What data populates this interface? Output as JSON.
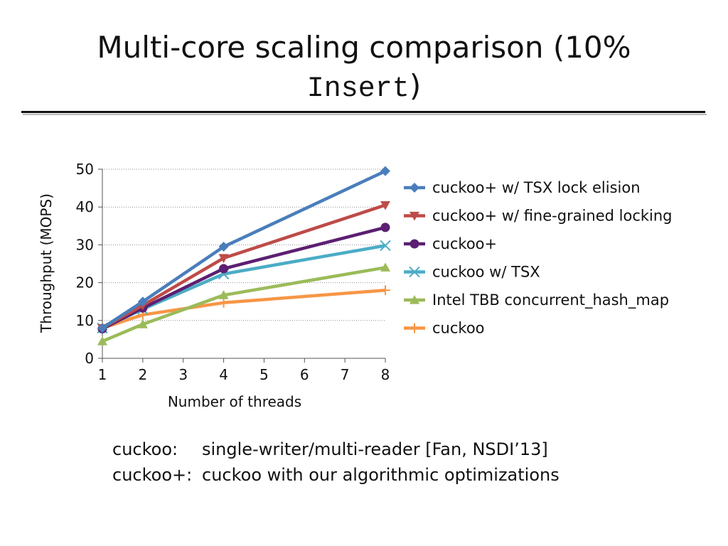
{
  "slide": {
    "title_text": "Multi-core scaling comparison (10%",
    "title_code": "Insert",
    "title_close": ")",
    "notes": [
      {
        "key": "cuckoo:",
        "text": "single-writer/multi-reader [Fan, NSDI’13]"
      },
      {
        "key": "cuckoo+:",
        "text": "cuckoo with our algorithmic optimizations"
      }
    ]
  },
  "chart_data": {
    "type": "line",
    "xlabel": "Number of threads",
    "ylabel": "Throughput (MOPS)",
    "x_ticks": [
      1,
      2,
      3,
      4,
      5,
      6,
      7,
      8
    ],
    "y_ticks": [
      0,
      10,
      20,
      30,
      40,
      50
    ],
    "xlim": [
      1,
      8
    ],
    "ylim": [
      0,
      50
    ],
    "grid": "horizontal",
    "legend_position": "right",
    "x": [
      1,
      2,
      4,
      8
    ],
    "series": [
      {
        "name": "cuckoo+ w/ TSX lock elision",
        "color": "#4a7ebb",
        "marker": "diamond",
        "values": [
          8,
          15,
          29.5,
          49.5
        ]
      },
      {
        "name": "cuckoo+ w/ fine-grained locking",
        "color": "#be4b48",
        "marker": "triangle-down",
        "values": [
          8,
          14,
          26.5,
          40.5
        ]
      },
      {
        "name": "cuckoo+",
        "color": "#5c1f72",
        "marker": "circle",
        "values": [
          7.8,
          13.3,
          23.7,
          34.6
        ]
      },
      {
        "name": "cuckoo w/ TSX",
        "color": "#4bacc6",
        "marker": "x",
        "values": [
          8,
          13,
          22.3,
          29.8
        ]
      },
      {
        "name": "Intel TBB concurrent_hash_map",
        "color": "#9bbb59",
        "marker": "triangle-up",
        "values": [
          4.5,
          9,
          16.7,
          24
        ]
      },
      {
        "name": "cuckoo",
        "color": "#f79646",
        "marker": "plus",
        "values": [
          8,
          11.5,
          14.7,
          18
        ]
      }
    ]
  }
}
